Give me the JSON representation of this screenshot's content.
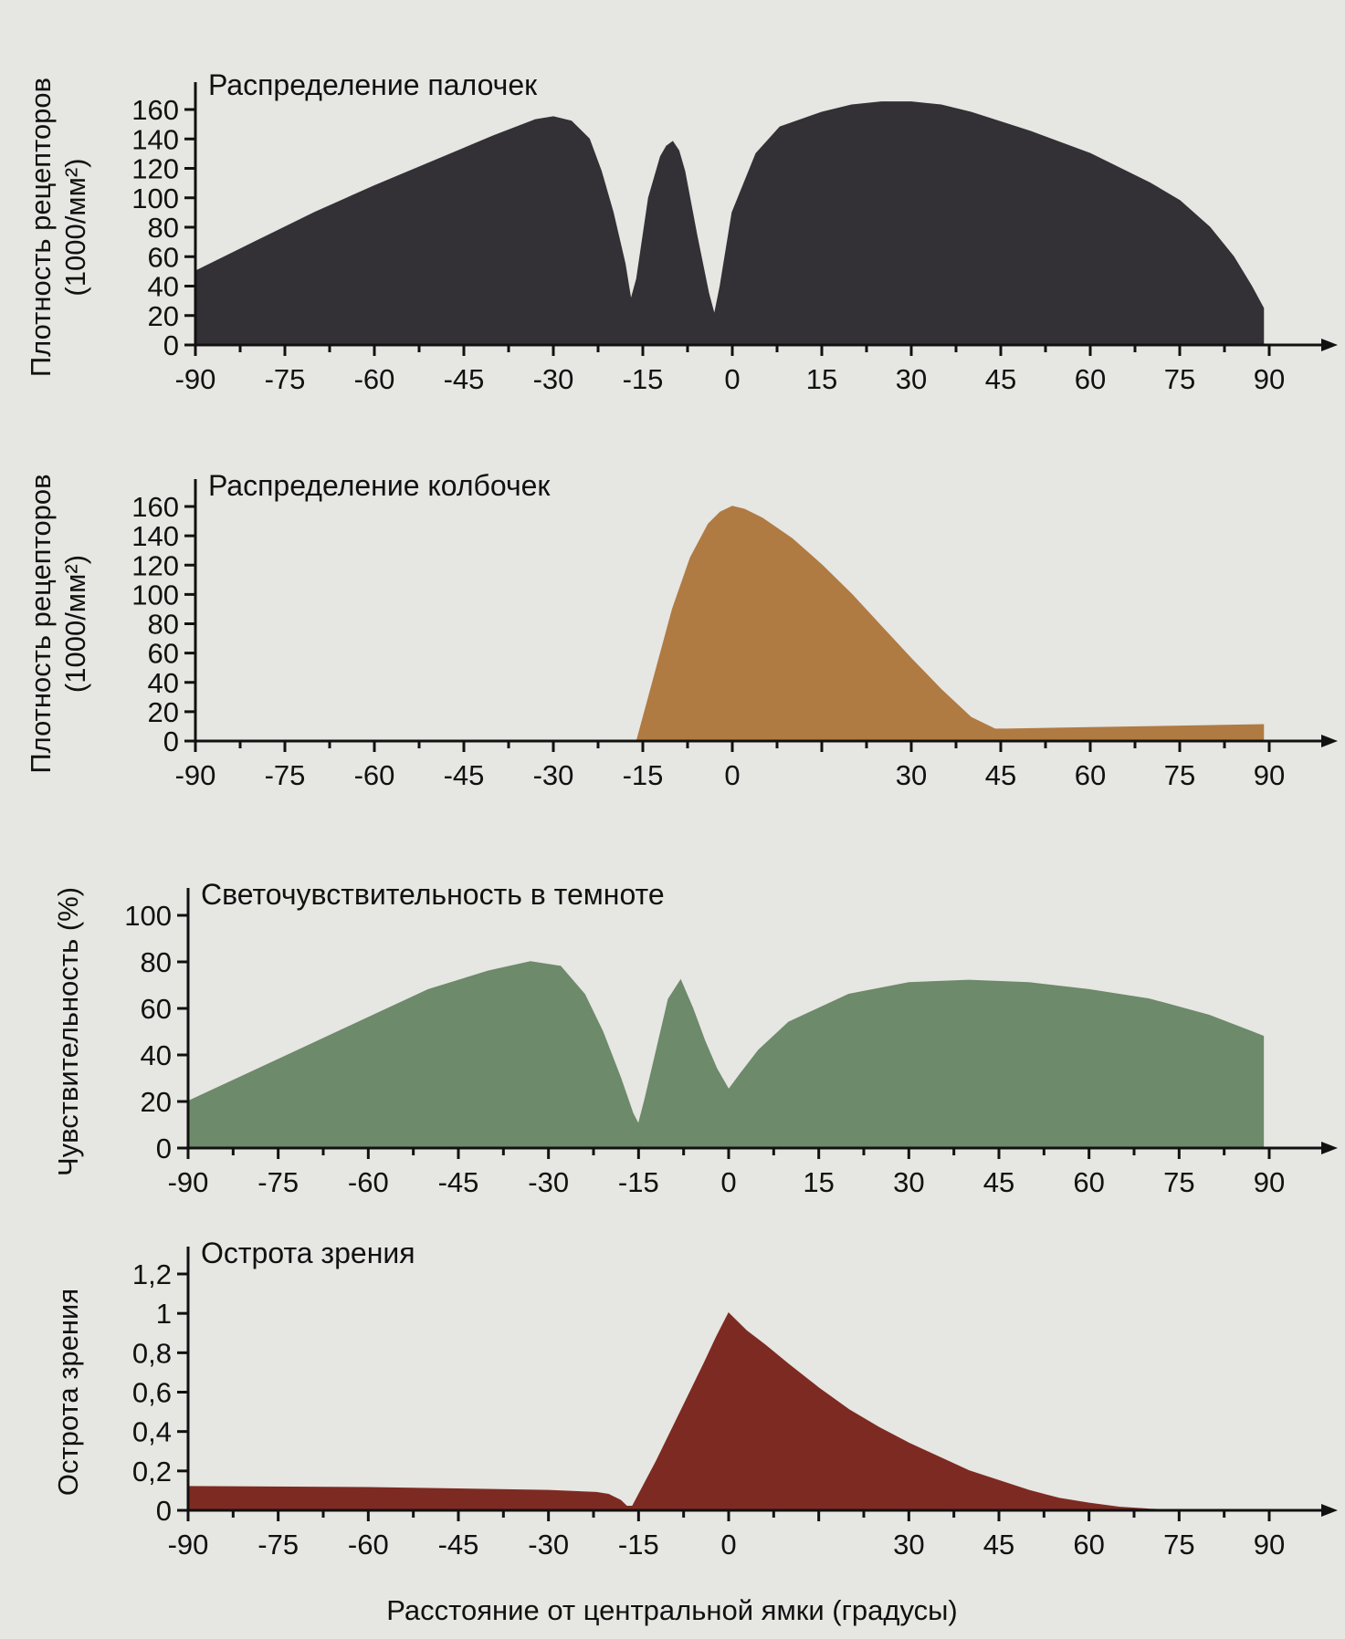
{
  "xlabel": "Расстояние от центральной ямки (градусы)",
  "chart_data": [
    {
      "type": "area",
      "title": "Распределение палочек",
      "ylabel": "Плотность рецепторов (1000/мм²)",
      "ylabel_lines": [
        "Плотность рецепторов",
        "(1000/мм²)"
      ],
      "color": "#333136",
      "xlim": [
        -90,
        90
      ],
      "ylim": [
        0,
        160
      ],
      "x_ticks": [
        "-90",
        "-75",
        "-60",
        "-45",
        "-30",
        "-15",
        "0",
        "15",
        "30",
        "45",
        "60",
        "75",
        "90"
      ],
      "y_ticks": [
        "0",
        "20",
        "40",
        "60",
        "80",
        "100",
        "120",
        "140",
        "160"
      ],
      "x": [
        -90,
        -80,
        -70,
        -60,
        -50,
        -40,
        -33,
        -30,
        -27,
        -24,
        -22,
        -20,
        -18,
        -17,
        -16,
        -14,
        -12,
        -11,
        -10,
        -9,
        -8,
        -6,
        -4,
        -3,
        -2,
        0,
        4,
        8,
        15,
        20,
        25,
        30,
        35,
        40,
        50,
        60,
        70,
        75,
        80,
        84,
        87,
        89
      ],
      "y": [
        50,
        70,
        90,
        108,
        125,
        142,
        153,
        155,
        152,
        140,
        118,
        90,
        55,
        30,
        45,
        100,
        128,
        135,
        138,
        132,
        118,
        75,
        35,
        20,
        40,
        90,
        130,
        148,
        158,
        163,
        165,
        165,
        163,
        158,
        145,
        130,
        110,
        98,
        80,
        60,
        40,
        25
      ]
    },
    {
      "type": "area",
      "title": "Распределение колбочек",
      "ylabel": "Плотность рецепторов (1000/мм²)",
      "ylabel_lines": [
        "Плотность рецепторов",
        "(1000/мм²)"
      ],
      "color": "#b07a43",
      "xlim": [
        -90,
        90
      ],
      "ylim": [
        0,
        160
      ],
      "x_ticks": [
        "-90",
        "-75",
        "-60",
        "-45",
        "-30",
        "-15",
        "0",
        "30",
        "45",
        "60",
        "75",
        "90"
      ],
      "y_ticks": [
        "0",
        "20",
        "40",
        "60",
        "80",
        "100",
        "120",
        "140",
        "160"
      ],
      "x": [
        -16,
        -13,
        -10,
        -7,
        -4,
        -2,
        0,
        2,
        5,
        10,
        15,
        20,
        25,
        30,
        35,
        40,
        44,
        46,
        60,
        75,
        89
      ],
      "y": [
        0,
        45,
        90,
        125,
        148,
        156,
        160,
        158,
        152,
        138,
        120,
        100,
        78,
        56,
        35,
        16,
        8,
        8,
        9,
        10,
        11
      ]
    },
    {
      "type": "area",
      "title": "Светочувствительность в темноте",
      "ylabel": "Чувствительность (%)",
      "ylabel_lines": [
        "Чувствительность (%)"
      ],
      "color": "#6d8a6b",
      "xlim": [
        -90,
        90
      ],
      "ylim": [
        0,
        100
      ],
      "x_ticks": [
        "-90",
        "-75",
        "-60",
        "-45",
        "-30",
        "-15",
        "0",
        "15",
        "30",
        "45",
        "60",
        "75",
        "90"
      ],
      "y_ticks": [
        "0",
        "20",
        "40",
        "60",
        "80",
        "100"
      ],
      "x": [
        -90,
        -80,
        -70,
        -60,
        -50,
        -40,
        -33,
        -28,
        -24,
        -21,
        -18,
        -16,
        -15,
        -14,
        -12,
        -10,
        -8,
        -6,
        -4,
        -2,
        0,
        2,
        5,
        10,
        20,
        30,
        40,
        50,
        60,
        70,
        80,
        87,
        89
      ],
      "y": [
        20,
        32,
        44,
        56,
        68,
        76,
        80,
        78,
        66,
        50,
        30,
        15,
        10,
        20,
        42,
        64,
        72,
        60,
        46,
        34,
        25,
        32,
        42,
        54,
        66,
        71,
        72,
        71,
        68,
        64,
        57,
        50,
        48
      ]
    },
    {
      "type": "area",
      "title": "Острота зрения",
      "ylabel": "Острота зрения",
      "ylabel_lines": [
        "Острота зрения"
      ],
      "color": "#7d2b22",
      "xlim": [
        -90,
        90
      ],
      "ylim": [
        0,
        1.2
      ],
      "x_ticks": [
        "-90",
        "-75",
        "-60",
        "-45",
        "-30",
        "-15",
        "0",
        "30",
        "45",
        "60",
        "75",
        "90"
      ],
      "y_ticks": [
        "0",
        "0,2",
        "0,4",
        "0,6",
        "0,8",
        "1",
        "1,2"
      ],
      "x": [
        -90,
        -60,
        -30,
        -22,
        -20,
        -18,
        -17,
        -16,
        -12,
        -8,
        -4,
        -2,
        0,
        3,
        6,
        10,
        15,
        20,
        25,
        30,
        35,
        40,
        45,
        50,
        55,
        60,
        65,
        70,
        75
      ],
      "y": [
        0.12,
        0.115,
        0.1,
        0.09,
        0.08,
        0.05,
        0.02,
        0.02,
        0.25,
        0.5,
        0.75,
        0.88,
        1.0,
        0.91,
        0.84,
        0.74,
        0.62,
        0.51,
        0.42,
        0.34,
        0.27,
        0.2,
        0.15,
        0.1,
        0.06,
        0.035,
        0.015,
        0.005,
        0
      ]
    }
  ]
}
